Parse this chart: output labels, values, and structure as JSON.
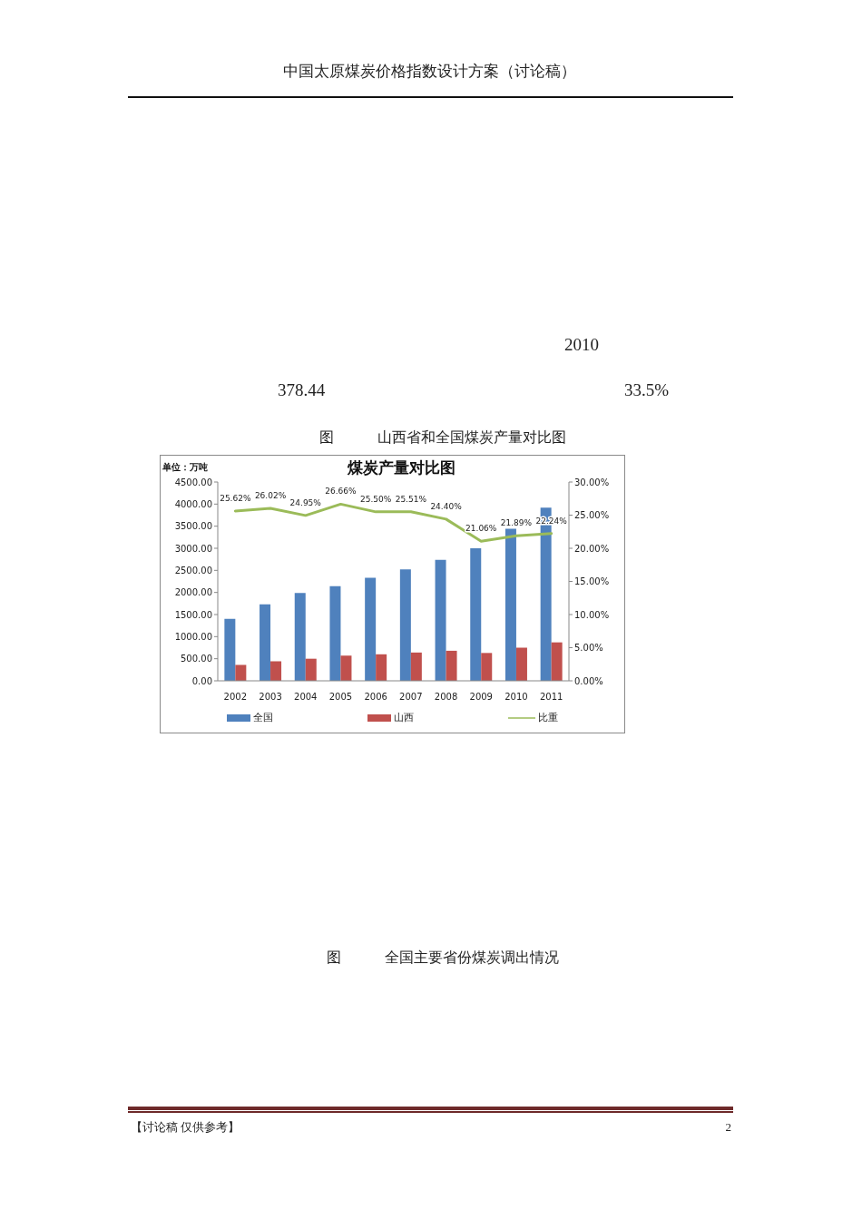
{
  "chart_data": {
    "type": "bar",
    "title": "煤炭产量对比图",
    "ylabel": "单位：万吨",
    "categories": [
      "2002",
      "2003",
      "2004",
      "2005",
      "2006",
      "2007",
      "2008",
      "2009",
      "2010",
      "2011"
    ],
    "series": [
      {
        "name": "全国",
        "color": "#4f81bd",
        "values": [
          1400,
          1730,
          1990,
          2140,
          2330,
          2520,
          2740,
          3000,
          3440,
          3920
        ]
      },
      {
        "name": "山西",
        "color": "#c0504d",
        "values": [
          360,
          440,
          500,
          570,
          600,
          640,
          680,
          630,
          750,
          870
        ]
      },
      {
        "name": "比重",
        "type": "line",
        "axis": "y2",
        "color": "#9bbb59",
        "values": [
          25.62,
          26.02,
          24.95,
          26.66,
          25.5,
          25.51,
          24.4,
          21.06,
          21.89,
          22.24
        ],
        "value_labels": [
          "25.62%",
          "26.02%",
          "24.95%",
          "26.66%",
          "25.50%",
          "25.51%",
          "24.40%",
          "21.06%",
          "21.89%",
          "22.24%"
        ]
      }
    ],
    "ylim": [
      0,
      4500
    ],
    "yticks": [
      {
        "value": 0,
        "label": "0.00"
      },
      {
        "value": 500,
        "label": "500.00"
      },
      {
        "value": 1000,
        "label": "1000.00"
      },
      {
        "value": 1500,
        "label": "1500.00"
      },
      {
        "value": 2000,
        "label": "2000.00"
      },
      {
        "value": 2500,
        "label": "2500.00"
      },
      {
        "value": 3000,
        "label": "3000.00"
      },
      {
        "value": 3500,
        "label": "3500.00"
      },
      {
        "value": 4000,
        "label": "4000.00"
      },
      {
        "value": 4500,
        "label": "4500.00"
      }
    ],
    "y2lim": [
      0,
      30
    ],
    "y2ticks": [
      {
        "value": 0,
        "label": "0.00%"
      },
      {
        "value": 5,
        "label": "5.00%"
      },
      {
        "value": 10,
        "label": "10.00%"
      },
      {
        "value": 15,
        "label": "15.00%"
      },
      {
        "value": 20,
        "label": "20.00%"
      },
      {
        "value": 25,
        "label": "25.00%"
      },
      {
        "value": 30,
        "label": "30.00%"
      }
    ],
    "grid": false,
    "legend": "bottom",
    "marker": "none",
    "line_style": "solid",
    "annotations": [
      "中国太原煤炭价格指数设计方案（讨论稿）",
      "2010",
      "378.44",
      "33.5%",
      "图 山西省和全国煤炭产量对比图",
      "图 全国主要省份煤炭调出情况",
      "【讨论稿 仅供参考】",
      "2"
    ]
  }
}
